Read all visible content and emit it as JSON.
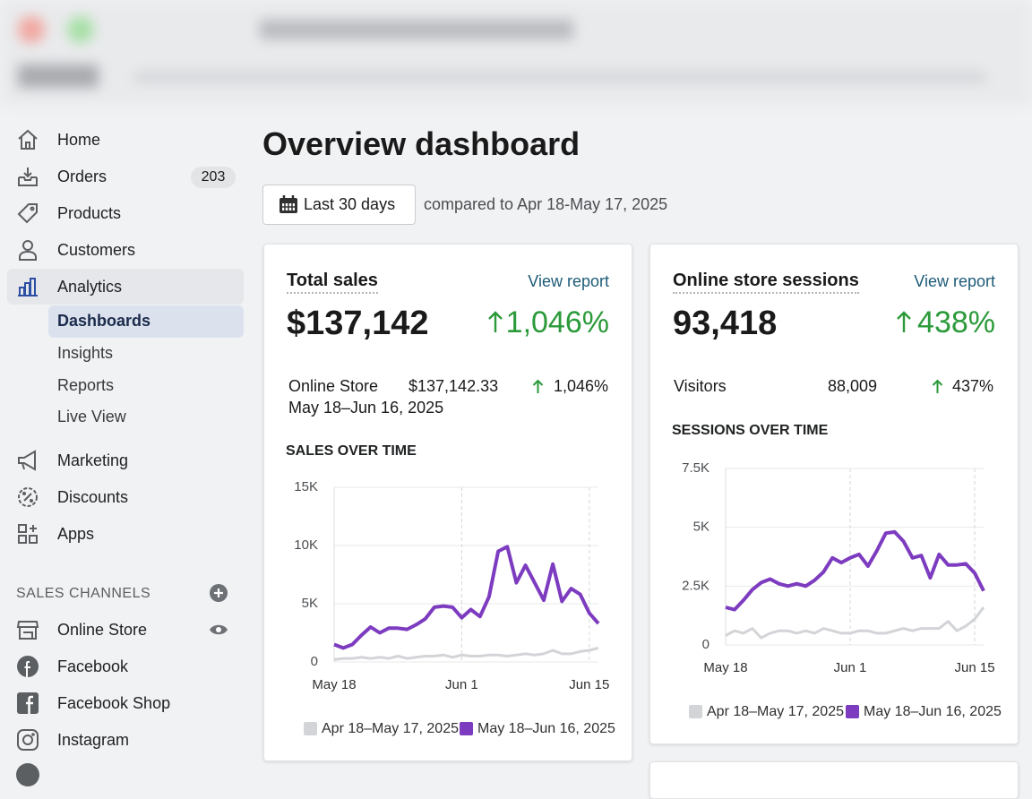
{
  "sidebar": {
    "items": [
      {
        "label": "Home"
      },
      {
        "label": "Orders",
        "badge": "203"
      },
      {
        "label": "Products"
      },
      {
        "label": "Customers"
      },
      {
        "label": "Analytics"
      }
    ],
    "sub_items": [
      "Dashboards",
      "Insights",
      "Reports",
      "Live View"
    ],
    "more_items": [
      "Marketing",
      "Discounts",
      "Apps"
    ],
    "section_title": "SALES CHANNELS",
    "channels": [
      "Online Store",
      "Facebook",
      "Facebook Shop",
      "Instagram"
    ]
  },
  "header": {
    "title": "Overview dashboard",
    "date_button": "Last 30 days",
    "comparison": "compared to Apr 18-May 17, 2025"
  },
  "cards": [
    {
      "title": "Total sales",
      "link": "View report",
      "value": "$137,142",
      "change": "1,046%",
      "row": {
        "label": "Online Store",
        "value": "$137,142.33",
        "change": "1,046%"
      },
      "date": "May 18–Jun 16, 2025"
    },
    {
      "title": "Online store sessions",
      "link": "View report",
      "value": "93,418",
      "change": "438%",
      "row": {
        "label": "Visitors",
        "value": "88,009",
        "change": "437%"
      }
    }
  ],
  "chart_data": [
    {
      "type": "line",
      "title": "SALES OVER TIME",
      "categories": [
        "May 18",
        null,
        null,
        null,
        null,
        null,
        null,
        null,
        null,
        null,
        null,
        null,
        null,
        null,
        "Jun 1",
        null,
        null,
        null,
        null,
        null,
        null,
        null,
        null,
        null,
        null,
        null,
        null,
        null,
        "Jun 15",
        null
      ],
      "series": [
        {
          "name": "Apr 18–May 17, 2025",
          "color": "#d2d4d7",
          "values": [
            200,
            300,
            300,
            400,
            300,
            400,
            300,
            500,
            300,
            400,
            500,
            500,
            600,
            400,
            600,
            500,
            500,
            600,
            600,
            500,
            600,
            700,
            600,
            700,
            1000,
            700,
            700,
            900,
            1000,
            1200
          ]
        },
        {
          "name": "May 18–Jun 16, 2025",
          "color": "#7d3cc0",
          "values": [
            1500,
            1200,
            1500,
            2300,
            3000,
            2500,
            2900,
            2900,
            2800,
            3200,
            3700,
            4700,
            4800,
            4700,
            3800,
            4500,
            3900,
            5600,
            9500,
            9900,
            6800,
            8300,
            6800,
            5300,
            8400,
            5200,
            6300,
            5800,
            4200,
            3300
          ]
        }
      ],
      "ylim": [
        0,
        15000
      ],
      "yticks": [
        0,
        {
          "value": 5000,
          "label": "5K"
        },
        {
          "value": 10000,
          "label": "10K"
        },
        {
          "value": 15000,
          "label": "15K"
        }
      ],
      "grid": true
    },
    {
      "type": "line",
      "title": "SESSIONS OVER TIME",
      "categories": [
        "May 18",
        null,
        null,
        null,
        null,
        null,
        null,
        null,
        null,
        null,
        null,
        null,
        null,
        null,
        "Jun 1",
        null,
        null,
        null,
        null,
        null,
        null,
        null,
        null,
        null,
        null,
        null,
        null,
        null,
        "Jun 15",
        null
      ],
      "series": [
        {
          "name": "Apr 18–May 17, 2025",
          "color": "#d2d4d7",
          "values": [
            400,
            600,
            500,
            700,
            300,
            500,
            600,
            600,
            500,
            600,
            500,
            700,
            600,
            500,
            500,
            600,
            600,
            500,
            500,
            600,
            700,
            600,
            700,
            700,
            700,
            1000,
            600,
            800,
            1100,
            1600
          ]
        },
        {
          "name": "May 18–Jun 16, 2025",
          "color": "#7d3cc0",
          "values": [
            1600,
            1500,
            1900,
            2350,
            2650,
            2800,
            2600,
            2500,
            2600,
            2500,
            2750,
            3100,
            3700,
            3500,
            3700,
            3850,
            3350,
            4000,
            4750,
            4800,
            4400,
            3700,
            3800,
            2850,
            3850,
            3400,
            3400,
            3450,
            3050,
            2300
          ]
        }
      ],
      "ylim": [
        0,
        7500
      ],
      "yticks": [
        0,
        {
          "value": 2500,
          "label": "2.5K"
        },
        {
          "value": 5000,
          "label": "5K"
        },
        {
          "value": 7500,
          "label": "7.5K"
        }
      ],
      "grid": true
    }
  ]
}
